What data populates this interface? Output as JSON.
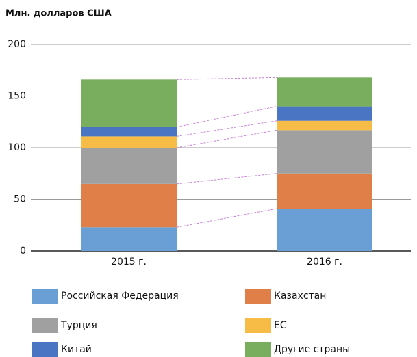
{
  "chart_data": {
    "type": "stacked_bar",
    "title": "Млн. долларов США",
    "categories": [
      "2015 г.",
      "2016 г."
    ],
    "series": [
      {
        "name": "Российская Федерация",
        "color": "#6a9fd6",
        "values": [
          23,
          41
        ]
      },
      {
        "name": "Казахстан",
        "color": "#e07f47",
        "values": [
          42,
          34
        ]
      },
      {
        "name": "Турция",
        "color": "#a0a0a0",
        "values": [
          35,
          42
        ]
      },
      {
        "name": "ЕС",
        "color": "#f7bc45",
        "values": [
          11,
          9
        ]
      },
      {
        "name": "Китай",
        "color": "#4a75c3",
        "values": [
          9,
          14
        ]
      },
      {
        "name": "Другие страны",
        "color": "#78ae5e",
        "values": [
          46,
          28
        ]
      }
    ],
    "ylim": [
      0,
      200
    ],
    "yticks": [
      0,
      50,
      100,
      150,
      200
    ],
    "grid": true,
    "legend": "bottom"
  }
}
